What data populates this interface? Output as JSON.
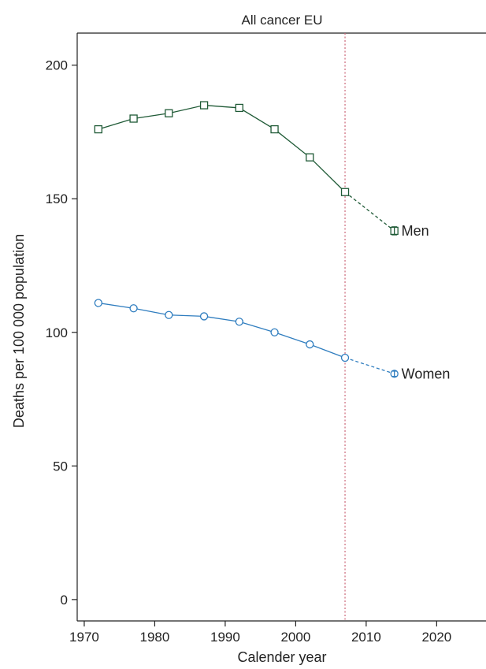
{
  "chart_data": {
    "type": "line",
    "title": "All cancer EU",
    "xlabel": "Calender year",
    "ylabel": "Deaths per 100 000 population",
    "xlim": [
      1969,
      2027
    ],
    "ylim": [
      -8,
      212
    ],
    "xticks": [
      1970,
      1980,
      1990,
      2000,
      2010,
      2020
    ],
    "yticks": [
      0,
      50,
      100,
      150,
      200
    ],
    "grid": false,
    "reference_line": {
      "x": 2007,
      "style": "dotted",
      "color": "#cc6677"
    },
    "series": [
      {
        "name": "Men",
        "marker": "square",
        "color": "#1f5a36",
        "x": [
          1972,
          1977,
          1982,
          1987,
          1992,
          1997,
          2002,
          2007
        ],
        "y": [
          176,
          180,
          182,
          185,
          184,
          176,
          165.5,
          152.5
        ],
        "prediction": {
          "x": 2014,
          "y": 138,
          "error": 1.5
        }
      },
      {
        "name": "Women",
        "marker": "circle",
        "color": "#2f7dbf",
        "x": [
          1972,
          1977,
          1982,
          1987,
          1992,
          1997,
          2002,
          2007
        ],
        "y": [
          111,
          109,
          106.5,
          106,
          104,
          100,
          95.5,
          90.5
        ],
        "prediction": {
          "x": 2014,
          "y": 84.5,
          "error": 1
        }
      }
    ]
  }
}
